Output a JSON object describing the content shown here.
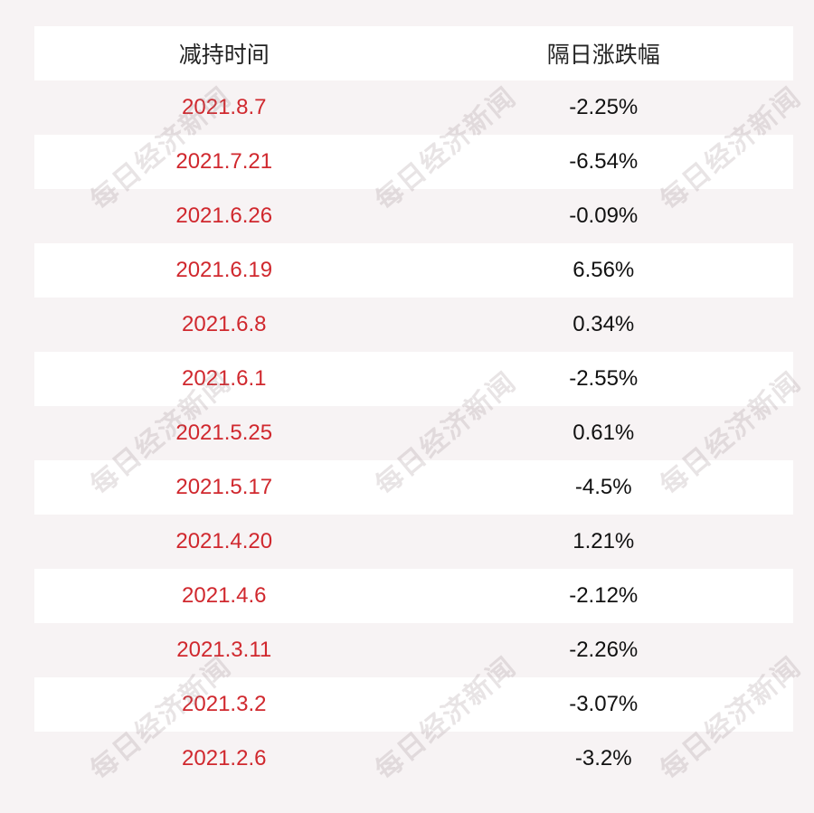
{
  "table": {
    "headers": [
      "减持时间",
      "隔日涨跌幅"
    ],
    "rows": [
      {
        "date": "2021.8.7",
        "change": "-2.25%"
      },
      {
        "date": "2021.7.21",
        "change": "-6.54%"
      },
      {
        "date": "2021.6.26",
        "change": "-0.09%"
      },
      {
        "date": "2021.6.19",
        "change": "6.56%"
      },
      {
        "date": "2021.6.8",
        "change": "0.34%"
      },
      {
        "date": "2021.6.1",
        "change": "-2.55%"
      },
      {
        "date": "2021.5.25",
        "change": "0.61%"
      },
      {
        "date": "2021.5.17",
        "change": "-4.5%"
      },
      {
        "date": "2021.4.20",
        "change": "1.21%"
      },
      {
        "date": "2021.4.6",
        "change": "-2.12%"
      },
      {
        "date": "2021.3.11",
        "change": "-2.26%"
      },
      {
        "date": "2021.3.2",
        "change": "-3.07%"
      },
      {
        "date": "2021.2.6",
        "change": "-3.2%"
      }
    ]
  },
  "watermark": {
    "text": "每日经济新闻"
  },
  "colors": {
    "date_text": "#d0282e",
    "change_text": "#111111",
    "row_white": "#ffffff",
    "row_tint": "#f7f3f4"
  }
}
